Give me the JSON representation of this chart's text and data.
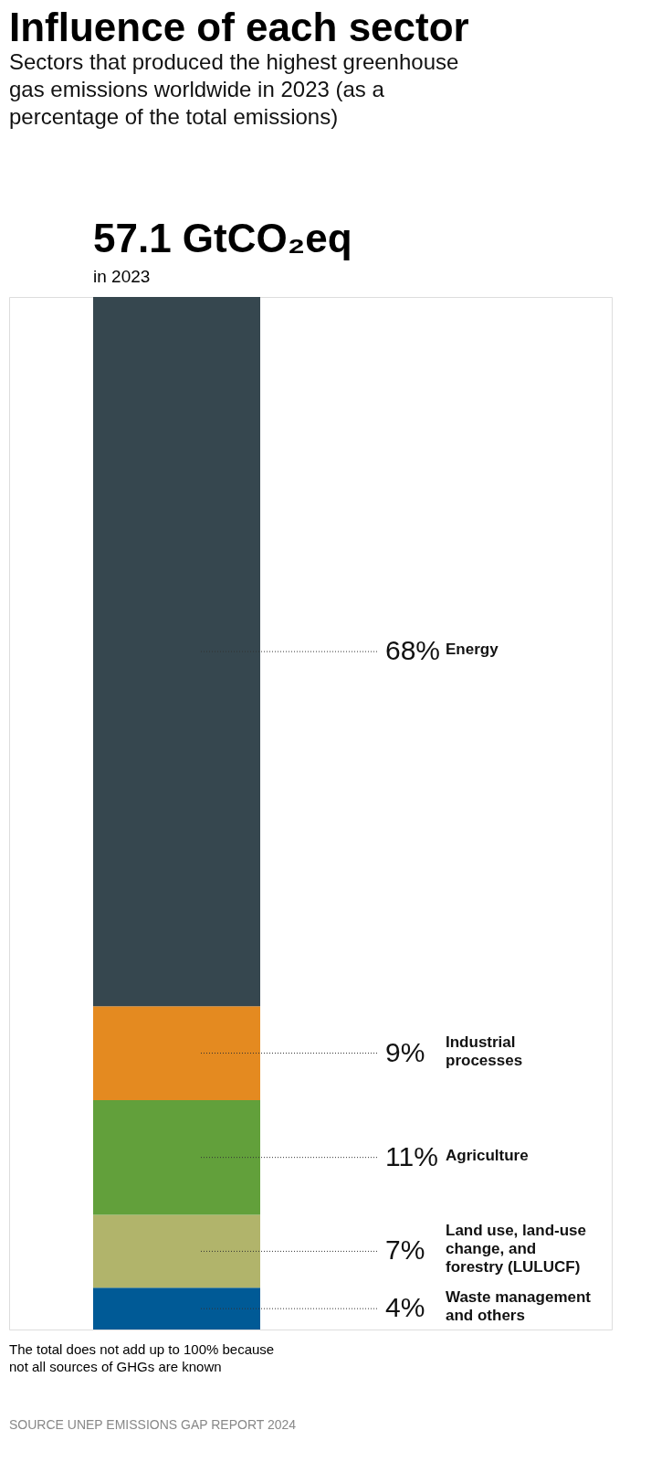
{
  "chart_data": {
    "type": "bar",
    "stacked": true,
    "title": "Influence of each sector",
    "subtitle": "Sectors that produced the highest greenhouse gas emissions worldwide in 2023 (as a percentage of the total emissions)",
    "categories": [
      null
    ],
    "series": [
      {
        "name": "Waste management and others",
        "color": "#005a96",
        "values": [
          4
        ],
        "value_labels": [
          "4%"
        ]
      },
      {
        "name": "Land use, land-use change, and forestry (LULUCF)",
        "color": "#b1b46b",
        "values": [
          7
        ],
        "value_labels": [
          "7%"
        ]
      },
      {
        "name": "Agriculture",
        "color": "#62a03b",
        "values": [
          11
        ],
        "value_labels": [
          "11%"
        ]
      },
      {
        "name": "Industrial processes",
        "color": "#e48a20",
        "values": [
          9
        ],
        "value_labels": [
          "9%"
        ]
      },
      {
        "name": "Energy",
        "color": "#36474f",
        "values": [
          68
        ],
        "value_labels": [
          "68%"
        ]
      }
    ],
    "annotations": [
      "57.1 GtCO₂eq",
      "in 2023",
      "The total does not add up to 100% because not all sources of GHGs are known",
      "SOURCE UNEP EMISSIONS GAP REPORT 2024"
    ],
    "legend": false,
    "grid": false
  }
}
